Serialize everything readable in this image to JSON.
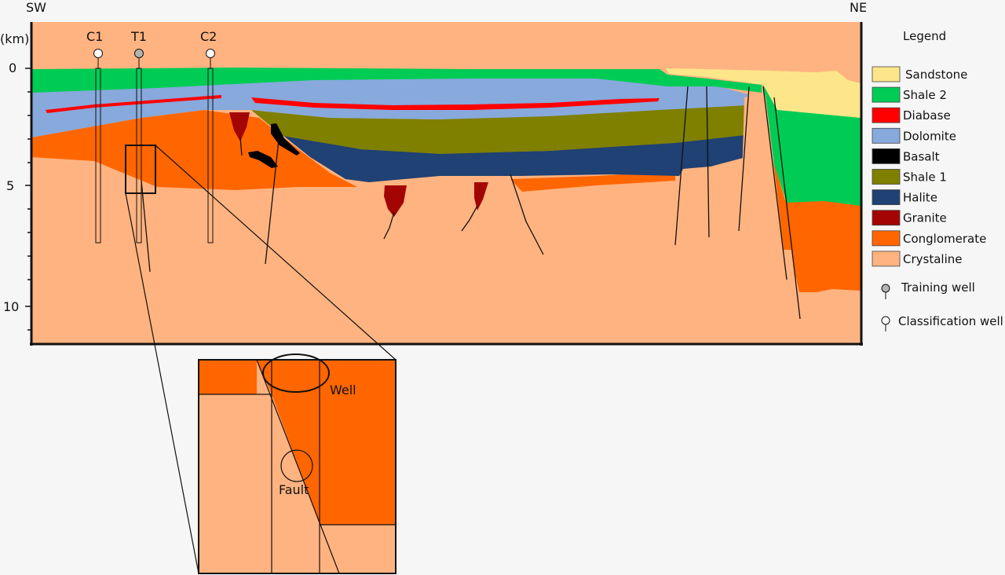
{
  "orientation": {
    "left": "SW",
    "right": "NE"
  },
  "depth_axis": {
    "unit_label": "(km)",
    "ticks": [
      "0",
      "5",
      "10"
    ]
  },
  "wells": [
    {
      "label": "C1",
      "kind": "classification"
    },
    {
      "label": "T1",
      "kind": "training"
    },
    {
      "label": "C2",
      "kind": "classification"
    }
  ],
  "legend": {
    "title": "Legend",
    "units": [
      {
        "label": "Sandstone",
        "color": "#fde68a"
      },
      {
        "label": "Shale 2",
        "color": "#00cc55"
      },
      {
        "label": "Diabase",
        "color": "#ff0000"
      },
      {
        "label": "Dolomite",
        "color": "#87a9dc"
      },
      {
        "label": "Basalt",
        "color": "#000000"
      },
      {
        "label": "Shale 1",
        "color": "#7f7f00"
      },
      {
        "label": "Halite",
        "color": "#1f4173"
      },
      {
        "label": "Granite",
        "color": "#a30505"
      },
      {
        "label": "Conglomerate",
        "color": "#ff6600"
      },
      {
        "label": "Crystaline",
        "color": "#ffb380"
      }
    ],
    "well_symbols": [
      {
        "label": "Training well",
        "fill": "#b3b3b3"
      },
      {
        "label": "Classification well",
        "fill": "#ffffff"
      }
    ]
  },
  "inset": {
    "well_label": "Well",
    "fault_label": "Fault"
  }
}
